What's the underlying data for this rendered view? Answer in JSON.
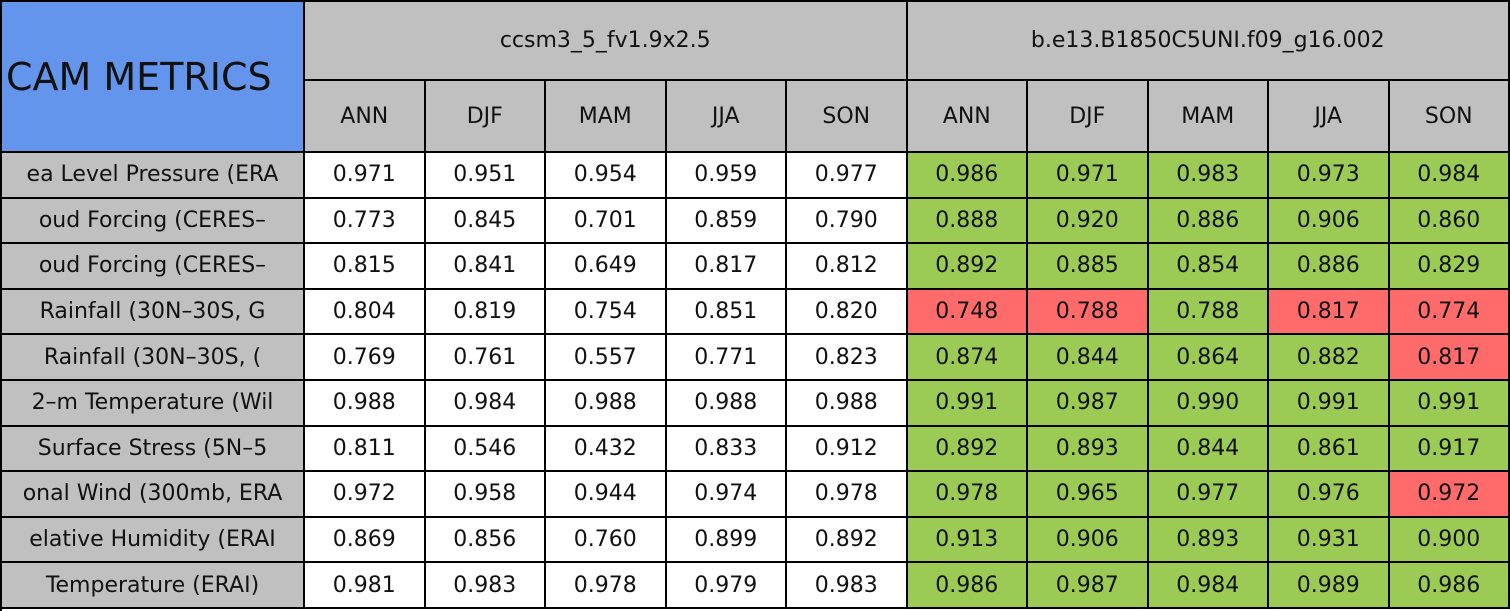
{
  "title": "CAM METRICS",
  "groups": [
    {
      "name": "ccsm3_5_fv1.9x2.5",
      "seasons": [
        "ANN",
        "DJF",
        "MAM",
        "JJA",
        "SON"
      ]
    },
    {
      "name": "b.e13.B1850C5UNI.f09_g16.002",
      "seasons": [
        "ANN",
        "DJF",
        "MAM",
        "JJA",
        "SON"
      ]
    }
  ],
  "rows": [
    {
      "label": "ea Level Pressure (ERA",
      "values": [
        "0.971",
        "0.951",
        "0.954",
        "0.959",
        "0.977",
        "0.986",
        "0.971",
        "0.983",
        "0.973",
        "0.984"
      ],
      "colors": [
        "#ffffff",
        "#ffffff",
        "#ffffff",
        "#ffffff",
        "#ffffff",
        "#9bcb55",
        "#9bcb55",
        "#9bcb55",
        "#9bcb55",
        "#9bcb55"
      ]
    },
    {
      "label": "oud Forcing (CERES–",
      "values": [
        "0.773",
        "0.845",
        "0.701",
        "0.859",
        "0.790",
        "0.888",
        "0.920",
        "0.886",
        "0.906",
        "0.860"
      ],
      "colors": [
        "#ffffff",
        "#ffffff",
        "#ffffff",
        "#ffffff",
        "#ffffff",
        "#9bcb55",
        "#9bcb55",
        "#9bcb55",
        "#9bcb55",
        "#9bcb55"
      ]
    },
    {
      "label": "oud Forcing (CERES–",
      "values": [
        "0.815",
        "0.841",
        "0.649",
        "0.817",
        "0.812",
        "0.892",
        "0.885",
        "0.854",
        "0.886",
        "0.829"
      ],
      "colors": [
        "#ffffff",
        "#ffffff",
        "#ffffff",
        "#ffffff",
        "#ffffff",
        "#9bcb55",
        "#9bcb55",
        "#9bcb55",
        "#9bcb55",
        "#9bcb55"
      ]
    },
    {
      "label": "Rainfall (30N–30S, G",
      "values": [
        "0.804",
        "0.819",
        "0.754",
        "0.851",
        "0.820",
        "0.748",
        "0.788",
        "0.788",
        "0.817",
        "0.774"
      ],
      "colors": [
        "#ffffff",
        "#ffffff",
        "#ffffff",
        "#ffffff",
        "#ffffff",
        "#ff6b6b",
        "#ff6b6b",
        "#9bcb55",
        "#ff6b6b",
        "#ff6b6b"
      ]
    },
    {
      "label": "Rainfall (30N–30S, (",
      "values": [
        "0.769",
        "0.761",
        "0.557",
        "0.771",
        "0.823",
        "0.874",
        "0.844",
        "0.864",
        "0.882",
        "0.817"
      ],
      "colors": [
        "#ffffff",
        "#ffffff",
        "#ffffff",
        "#ffffff",
        "#ffffff",
        "#9bcb55",
        "#9bcb55",
        "#9bcb55",
        "#9bcb55",
        "#ff6b6b"
      ]
    },
    {
      "label": "2–m Temperature (Wil",
      "values": [
        "0.988",
        "0.984",
        "0.988",
        "0.988",
        "0.988",
        "0.991",
        "0.987",
        "0.990",
        "0.991",
        "0.991"
      ],
      "colors": [
        "#ffffff",
        "#ffffff",
        "#ffffff",
        "#ffffff",
        "#ffffff",
        "#9bcb55",
        "#9bcb55",
        "#9bcb55",
        "#9bcb55",
        "#9bcb55"
      ]
    },
    {
      "label": "Surface Stress (5N–5",
      "values": [
        "0.811",
        "0.546",
        "0.432",
        "0.833",
        "0.912",
        "0.892",
        "0.893",
        "0.844",
        "0.861",
        "0.917"
      ],
      "colors": [
        "#ffffff",
        "#ffffff",
        "#ffffff",
        "#ffffff",
        "#ffffff",
        "#9bcb55",
        "#9bcb55",
        "#9bcb55",
        "#9bcb55",
        "#9bcb55"
      ]
    },
    {
      "label": "onal Wind (300mb, ERA",
      "values": [
        "0.972",
        "0.958",
        "0.944",
        "0.974",
        "0.978",
        "0.978",
        "0.965",
        "0.977",
        "0.976",
        "0.972"
      ],
      "colors": [
        "#ffffff",
        "#ffffff",
        "#ffffff",
        "#ffffff",
        "#ffffff",
        "#9bcb55",
        "#9bcb55",
        "#9bcb55",
        "#9bcb55",
        "#ff6b6b"
      ]
    },
    {
      "label": "elative Humidity (ERAI",
      "values": [
        "0.869",
        "0.856",
        "0.760",
        "0.899",
        "0.892",
        "0.913",
        "0.906",
        "0.893",
        "0.931",
        "0.900"
      ],
      "colors": [
        "#ffffff",
        "#ffffff",
        "#ffffff",
        "#ffffff",
        "#ffffff",
        "#9bcb55",
        "#9bcb55",
        "#9bcb55",
        "#9bcb55",
        "#9bcb55"
      ]
    },
    {
      "label": "Temperature (ERAI)",
      "values": [
        "0.981",
        "0.983",
        "0.978",
        "0.979",
        "0.983",
        "0.986",
        "0.987",
        "0.984",
        "0.989",
        "0.986"
      ],
      "colors": [
        "#ffffff",
        "#ffffff",
        "#ffffff",
        "#ffffff",
        "#ffffff",
        "#9bcb55",
        "#9bcb55",
        "#9bcb55",
        "#9bcb55",
        "#9bcb55"
      ]
    }
  ]
}
